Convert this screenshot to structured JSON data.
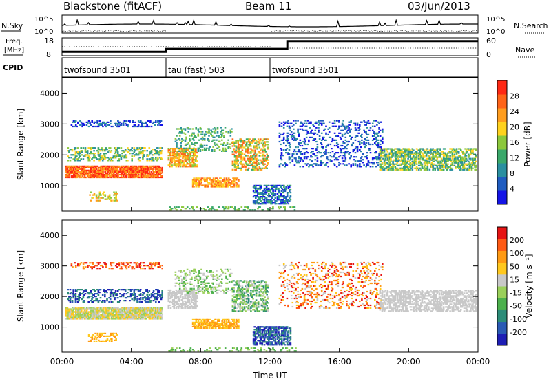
{
  "header": {
    "station": "Blackstone (fitACF)",
    "beam": "Beam 11",
    "date": "03/Jun/2013"
  },
  "chart_data": [
    {
      "type": "line",
      "title": "",
      "left_label": "N.Sky",
      "right_label": "N.Search",
      "left_ticks": [
        "10^5",
        "10^0"
      ],
      "right_ticks": [
        "10^5",
        "10^0"
      ]
    },
    {
      "type": "line",
      "title": "",
      "left_label": [
        "Freq.",
        "[MHz]"
      ],
      "right_label": "Nave",
      "left_ticks": [
        "18",
        "8"
      ],
      "right_ticks": [
        "60",
        "0"
      ],
      "frequency_steps": [
        {
          "from": "00:00",
          "to": "06:00",
          "value": 10.2
        },
        {
          "from": "06:00",
          "to": "12:00",
          "value": 11.8
        },
        {
          "from": "12:00",
          "to": "13:00",
          "value": 11.8
        },
        {
          "from": "13:00",
          "to": "24:00",
          "value": 16.2
        }
      ]
    },
    {
      "type": "table",
      "label": "CPID",
      "modes": [
        {
          "start": "00:00",
          "name": "twofsound 3501"
        },
        {
          "start": "06:00",
          "name": "tau (fast) 503"
        },
        {
          "start": "12:00",
          "name": "twofsound 3501"
        }
      ]
    },
    {
      "type": "heatmap",
      "ylabel": "Slant Range [km]",
      "yticks": [
        "1000",
        "2000",
        "3000",
        "4000"
      ],
      "ylim": [
        180,
        4500
      ],
      "colorbar_label": "Power [dB]",
      "colorbar_ticks": [
        "4",
        "8",
        "12",
        "16",
        "20",
        "24",
        "28"
      ],
      "colorbar_range": [
        0,
        30
      ],
      "colors": [
        "#1414e6",
        "#1f5cc0",
        "#2a8fa0",
        "#3aa86a",
        "#8cc83c",
        "#ffd21e",
        "#ff9d1e",
        "#ff6418",
        "#ff2814"
      ]
    },
    {
      "type": "heatmap",
      "ylabel": "Slant Range [km]",
      "yticks": [
        "1000",
        "2000",
        "3000",
        "4000"
      ],
      "ylim": [
        180,
        4500
      ],
      "colorbar_label": "Velocity [m s⁻¹]",
      "colorbar_ticks": [
        "200",
        "100",
        "50",
        "15",
        "-15",
        "-50",
        "-100",
        "-200"
      ],
      "colorbar_range": [
        -250,
        250
      ],
      "colors": [
        "#1e1eb4",
        "#2a5ab4",
        "#2c8c78",
        "#4cb04c",
        "#9ad05a",
        "#c8c8c8",
        "#ffc81e",
        "#ff9a14",
        "#ff5a14",
        "#e61414"
      ]
    }
  ],
  "x_axis": {
    "label": "Time UT",
    "ticks": [
      "00:00",
      "04:00",
      "08:00",
      "12:00",
      "16:00",
      "20:00",
      "00:00"
    ],
    "range_hours": [
      0,
      24
    ]
  }
}
